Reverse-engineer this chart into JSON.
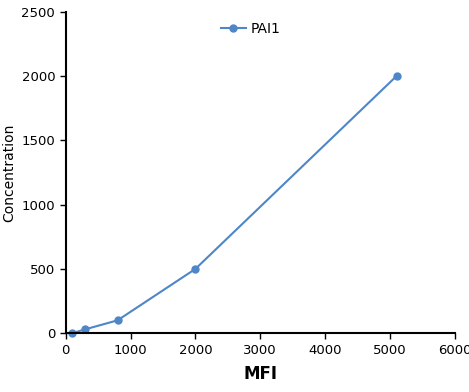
{
  "x": [
    100,
    300,
    800,
    2000,
    5100
  ],
  "y": [
    0,
    30,
    100,
    500,
    2000
  ],
  "line_color": "#4e86c8",
  "marker": "o",
  "marker_size": 5,
  "legend_label": "PAI1",
  "xlabel": "MFI",
  "ylabel": "Concentration",
  "xlim": [
    0,
    6000
  ],
  "ylim": [
    0,
    2500
  ],
  "xticks": [
    0,
    1000,
    2000,
    3000,
    4000,
    5000,
    6000
  ],
  "yticks": [
    0,
    500,
    1000,
    1500,
    2000,
    2500
  ],
  "xlabel_fontsize": 12,
  "ylabel_fontsize": 10,
  "tick_fontsize": 9.5,
  "legend_fontsize": 10,
  "figsize": [
    4.69,
    3.92
  ],
  "dpi": 100,
  "spine_linewidth": 1.5
}
